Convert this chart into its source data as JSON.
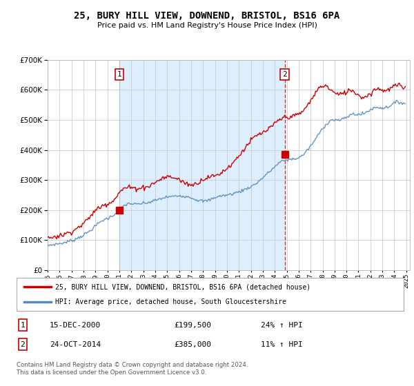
{
  "title": "25, BURY HILL VIEW, DOWNEND, BRISTOL, BS16 6PA",
  "subtitle": "Price paid vs. HM Land Registry's House Price Index (HPI)",
  "legend_line1": "25, BURY HILL VIEW, DOWNEND, BRISTOL, BS16 6PA (detached house)",
  "legend_line2": "HPI: Average price, detached house, South Gloucestershire",
  "footnote": "Contains HM Land Registry data © Crown copyright and database right 2024.\nThis data is licensed under the Open Government Licence v3.0.",
  "sale1_date": "15-DEC-2000",
  "sale1_price": "£199,500",
  "sale1_hpi": "24% ↑ HPI",
  "sale1_year": 2001.0,
  "sale1_price_val": 199500,
  "sale2_date": "24-OCT-2014",
  "sale2_price": "£385,000",
  "sale2_hpi": "11% ↑ HPI",
  "sale2_year": 2014.83,
  "sale2_price_val": 385000,
  "price_color": "#cc0000",
  "hpi_color": "#5588bb",
  "shade_color": "#ddeeff",
  "vline1_color": "#aaaaaa",
  "vline2_color": "#cc0000",
  "ylim": [
    0,
    700000
  ],
  "yticks": [
    0,
    100000,
    200000,
    300000,
    400000,
    500000,
    600000,
    700000
  ],
  "background_color": "#ffffff",
  "plot_bg_color": "#ffffff",
  "grid_color": "#cccccc",
  "hpi_monthly": [
    82000,
    82500,
    83000,
    83800,
    84200,
    84800,
    85500,
    86000,
    86800,
    87200,
    87800,
    88000,
    88500,
    89000,
    89800,
    90500,
    91200,
    92000,
    93000,
    94000,
    95000,
    96000,
    97000,
    97800,
    98500,
    99500,
    100500,
    102000,
    103500,
    105000,
    107000,
    108500,
    110000,
    112000,
    113500,
    115000,
    117000,
    119000,
    121000,
    123000,
    125000,
    128000,
    130500,
    133000,
    136000,
    138500,
    141000,
    144000,
    147000,
    150000,
    153000,
    156000,
    158500,
    161000,
    163500,
    165500,
    167000,
    168500,
    170000,
    171000,
    172000,
    173500,
    175000,
    177000,
    179000,
    181000,
    183500,
    186000,
    189000,
    192000,
    195000,
    198000,
    201000,
    204000,
    207000,
    210000,
    213000,
    215000,
    217000,
    219000,
    220500,
    221500,
    222000,
    222000,
    221500,
    221000,
    220000,
    219500,
    219000,
    219000,
    219500,
    220000,
    220500,
    221000,
    221500,
    222000,
    222500,
    222800,
    223000,
    223500,
    224000,
    225000,
    226000,
    227000,
    228000,
    229000,
    230000,
    231000,
    232000,
    233000,
    234000,
    235000,
    236000,
    237000,
    238000,
    239000,
    240000,
    241000,
    242000,
    243000,
    243500,
    244000,
    244500,
    244800,
    245000,
    245000,
    245200,
    245500,
    246000,
    246500,
    247000,
    247500,
    248000,
    248500,
    248000,
    247500,
    247000,
    246500,
    246000,
    245500,
    245000,
    244500,
    244000,
    243500,
    242000,
    240500,
    239000,
    237500,
    236000,
    235000,
    234000,
    233000,
    232000,
    231500,
    231000,
    230500,
    230000,
    229800,
    230000,
    230500,
    231000,
    232000,
    233000,
    234500,
    236000,
    237500,
    239000,
    240500,
    242000,
    243500,
    244500,
    245500,
    246000,
    246500,
    247000,
    247500,
    248000,
    248500,
    249000,
    249500,
    250000,
    250500,
    251000,
    252000,
    253000,
    254000,
    255000,
    256000,
    257000,
    258000,
    259000,
    260000,
    261000,
    262000,
    263000,
    264500,
    266000,
    267500,
    269000,
    270500,
    272000,
    273500,
    275000,
    276500,
    278000,
    280000,
    282000,
    284000,
    286000,
    288000,
    290500,
    293000,
    296000,
    299000,
    302000,
    305000,
    308000,
    311000,
    314000,
    317000,
    320000,
    323000,
    326000,
    329000,
    332000,
    335000,
    338000,
    341000,
    344000,
    347000,
    350000,
    353000,
    356000,
    358500,
    360500,
    362000,
    363500,
    364500,
    365500,
    366500,
    367000,
    367500,
    368000,
    368500,
    369000,
    369500,
    370000,
    370500,
    371000,
    371500,
    372000,
    373000,
    374000,
    376000,
    378000,
    380500,
    383000,
    386000,
    389500,
    393000,
    397000,
    401000,
    405000,
    409000,
    413000,
    417500,
    422000,
    427000,
    432000,
    437000,
    442000,
    447000,
    452000,
    457000,
    462000,
    467000,
    471000,
    475000,
    479000,
    483000,
    487000,
    490500,
    493500,
    496000,
    498000,
    499500,
    500500,
    501000,
    500500,
    500000,
    499500,
    499000,
    499000,
    499500,
    500000,
    501000,
    502000,
    503500,
    505000,
    507000,
    509000,
    511000,
    513000,
    515000,
    517000,
    518500,
    519500,
    520000,
    520000,
    519500,
    519000,
    518500,
    518000,
    518000,
    518500,
    519000,
    520000,
    521000,
    522500,
    524000,
    526000,
    528000,
    530000,
    532000,
    534000,
    536000,
    537500,
    539000,
    540000,
    541000,
    541500,
    542000,
    542000,
    541500,
    541000,
    540500,
    540000,
    540000,
    540500,
    541000,
    542000,
    543000,
    544500,
    546000,
    548000,
    550000,
    552000,
    554000,
    556000,
    557500,
    558500,
    559000,
    559000,
    558500,
    558000,
    557500,
    557000,
    556500,
    556000,
    555500
  ],
  "prop_monthly": [
    107000,
    107500,
    108000,
    109000,
    109500,
    110200,
    111000,
    111800,
    112500,
    113000,
    113800,
    114200,
    115000,
    115800,
    116500,
    117500,
    118500,
    119500,
    121000,
    122500,
    124000,
    125500,
    127000,
    128000,
    129000,
    130500,
    132000,
    134000,
    136000,
    138500,
    141000,
    143000,
    145500,
    148000,
    150000,
    152000,
    155000,
    158000,
    161000,
    164500,
    168000,
    172000,
    176000,
    180000,
    184000,
    188000,
    191500,
    195000,
    198500,
    201500,
    204000,
    206500,
    209000,
    211000,
    213000,
    215000,
    216500,
    218000,
    219500,
    220500,
    221500,
    222500,
    224000,
    226000,
    228500,
    231000,
    234000,
    237000,
    241000,
    245000,
    249000,
    253500,
    257500,
    261000,
    264500,
    268000,
    270500,
    272500,
    273500,
    274500,
    275000,
    275500,
    275500,
    275000,
    274500,
    274000,
    273000,
    272500,
    272000,
    272000,
    272500,
    273000,
    273500,
    274000,
    274500,
    275000,
    275500,
    276000,
    276500,
    277000,
    278000,
    279000,
    280500,
    282000,
    284000,
    286000,
    288000,
    290000,
    292000,
    294000,
    296000,
    298000,
    300000,
    302000,
    304000,
    305500,
    307000,
    308000,
    309000,
    310000,
    310500,
    311000,
    311000,
    310500,
    310000,
    309500,
    308500,
    307500,
    306500,
    305500,
    304500,
    303500,
    301500,
    299500,
    297500,
    295500,
    293500,
    292000,
    290500,
    289000,
    287500,
    286500,
    285500,
    285000,
    284500,
    284000,
    284500,
    285500,
    286500,
    288000,
    290000,
    292000,
    294500,
    296500,
    298500,
    300500,
    302500,
    304000,
    305500,
    307000,
    308000,
    309000,
    310000,
    311000,
    311500,
    312000,
    312500,
    313000,
    314000,
    315000,
    316500,
    318000,
    320000,
    322000,
    324000,
    326000,
    328500,
    331000,
    333500,
    336000,
    339000,
    342000,
    345000,
    348000,
    351000,
    354000,
    357500,
    361000,
    365000,
    369000,
    373000,
    377000,
    381000,
    385000,
    389000,
    393500,
    398000,
    402000,
    406000,
    410500,
    415000,
    419000,
    423000,
    427000,
    431000,
    434000,
    437500,
    440500,
    443000,
    445500,
    447500,
    449500,
    451000,
    452500,
    454000,
    455500,
    457000,
    459000,
    461000,
    463000,
    465000,
    467000,
    469500,
    472000,
    475000,
    478000,
    481000,
    484000,
    487000,
    490000,
    493000,
    496000,
    499000,
    501000,
    503000,
    505000,
    506500,
    507500,
    508500,
    509000,
    509500,
    510000,
    510500,
    511000,
    511500,
    512000,
    512500,
    513000,
    514000,
    515000,
    516000,
    517500,
    519000,
    521000,
    523500,
    526000,
    529000,
    532500,
    536000,
    540000,
    544500,
    549000,
    554000,
    559000,
    564000,
    569000,
    574000,
    579500,
    585000,
    590000,
    595000,
    600000,
    604000,
    607500,
    610500,
    612500,
    614000,
    614500,
    614000,
    613000,
    611500,
    609500,
    607000,
    604000,
    601000,
    598000,
    595000,
    592500,
    590000,
    588000,
    586500,
    585500,
    585000,
    585000,
    585500,
    586000,
    587000,
    588500,
    590000,
    592000,
    594000,
    596000,
    597500,
    598500,
    599000,
    598500,
    597500,
    596000,
    594000,
    591500,
    588500,
    585500,
    582500,
    580000,
    578000,
    576500,
    576000,
    576000,
    576500,
    577500,
    579000,
    581000,
    583000,
    585500,
    588000,
    591000,
    594000,
    597000,
    599500,
    601500,
    603000,
    604000,
    604500,
    604000,
    603000,
    601500,
    600000,
    599000,
    598500,
    598000,
    598500,
    599000,
    600500,
    602000,
    604000,
    606000,
    608500,
    611000,
    613000,
    614500,
    615500,
    615500,
    615000,
    614000,
    612500,
    611000,
    609500,
    608000,
    606500,
    605000
  ]
}
